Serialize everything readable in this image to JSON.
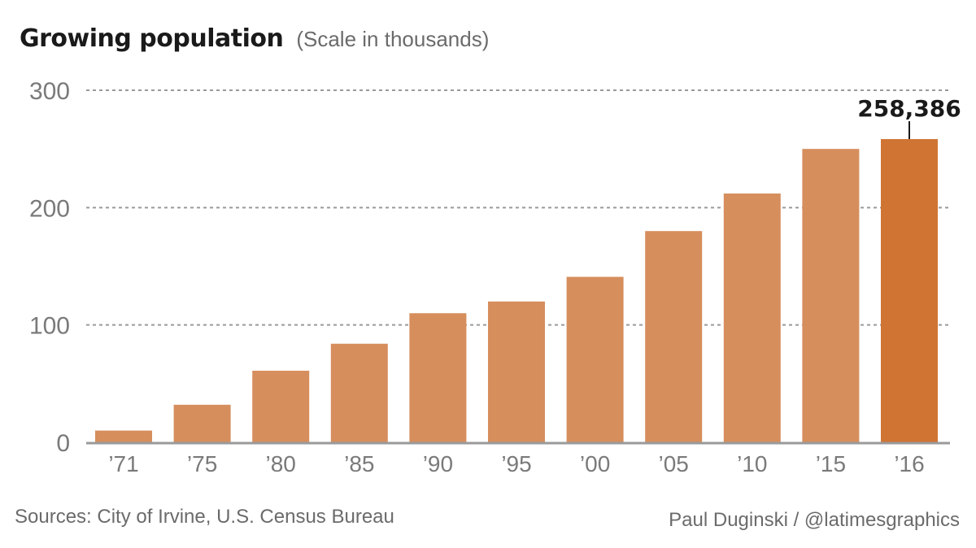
{
  "chart_data": {
    "type": "bar",
    "title": "Growing population",
    "subtitle": "(Scale in thousands)",
    "xlabel": "",
    "ylabel": "",
    "categories": [
      "’71",
      "’75",
      "’80",
      "’85",
      "’90",
      "’95",
      "’00",
      "’05",
      "’10",
      "’15",
      "’16"
    ],
    "values": [
      10,
      32,
      61,
      84,
      110,
      120,
      141,
      180,
      212,
      250,
      258.386
    ],
    "ylim": [
      0,
      300
    ],
    "yticks": [
      0,
      100,
      200,
      300
    ],
    "ytick_labels": [
      "0",
      "100",
      "200",
      "300"
    ],
    "grid": "dotted horizontal at 100, 200, 300",
    "legend": "none",
    "highlight": {
      "category": "’16",
      "label": "258,386"
    },
    "colors": {
      "bar": "#d68e5d",
      "highlight_bar": "#d07433",
      "gridline": "#9a9a9a",
      "baseline": "#9a9a9a",
      "tick_label": "#7a7a7a",
      "annotation": "#1a1a1a"
    }
  },
  "footer": {
    "source": "Sources: City of Irvine, U.S. Census Bureau",
    "credit": "Paul Duginski / @latimesgraphics"
  }
}
